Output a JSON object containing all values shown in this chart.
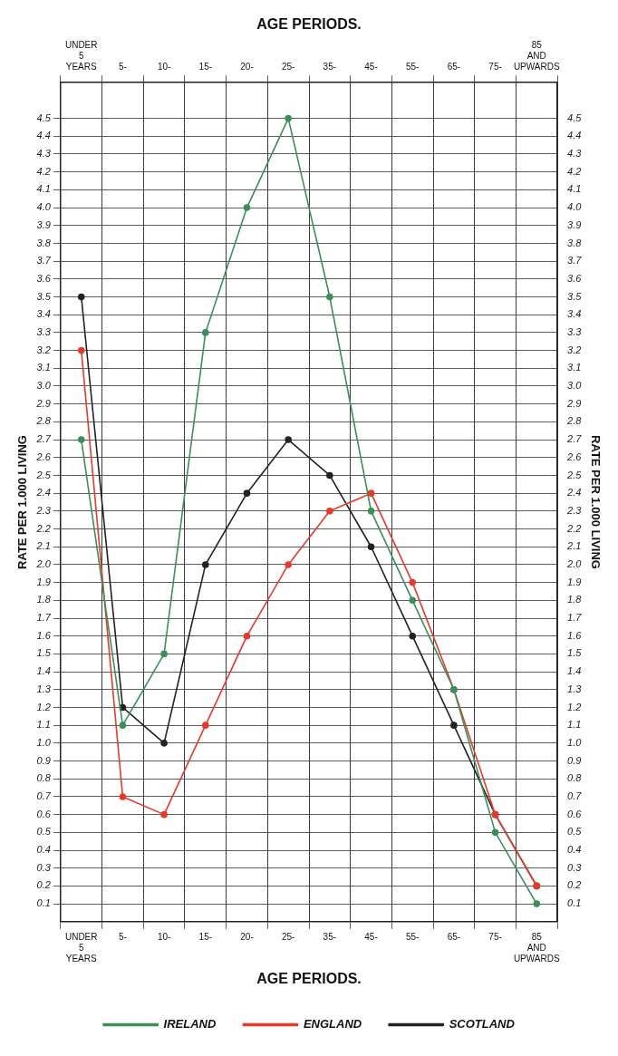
{
  "chart_data": {
    "type": "line",
    "xlabel": "AGE PERIODS.",
    "x2label": "AGE PERIODS.",
    "ylabel": "RATE PER 1.000 LIVING",
    "y2label": "RATE PER 1.000 LIVING",
    "categories": [
      "UNDER 5 YEARS",
      "5-",
      "10-",
      "15-",
      "20-",
      "25-",
      "35-",
      "45-",
      "55-",
      "65-",
      "75-",
      "85 AND UPWARDS"
    ],
    "series": [
      {
        "name": "IRELAND",
        "color": "#3a8f5a",
        "values": [
          2.7,
          1.1,
          1.5,
          3.3,
          4.0,
          4.5,
          3.5,
          2.3,
          1.8,
          1.3,
          0.5,
          0.1
        ]
      },
      {
        "name": "ENGLAND",
        "color": "#e8392a",
        "values": [
          3.2,
          0.7,
          0.6,
          1.1,
          1.6,
          2.0,
          2.3,
          2.4,
          1.9,
          1.3,
          0.6,
          0.2
        ]
      },
      {
        "name": "SCOTLAND",
        "color": "#222222",
        "values": [
          3.5,
          1.2,
          1.0,
          2.0,
          2.4,
          2.7,
          2.5,
          2.1,
          1.6,
          1.1,
          0.6,
          0.2
        ]
      }
    ],
    "ylim": [
      0,
      4.7
    ],
    "yticks": [
      0.1,
      0.2,
      0.3,
      0.4,
      0.5,
      0.6,
      0.7,
      0.8,
      0.9,
      {
        "value": 1,
        "label": "1.0"
      },
      1.1,
      1.2,
      1.3,
      1.4,
      1.5,
      1.6,
      1.7,
      1.8,
      1.9,
      {
        "value": 2,
        "label": "2.0"
      },
      2.1,
      2.2,
      2.3,
      2.4,
      2.5,
      2.6,
      2.7,
      2.8,
      2.9,
      {
        "value": 3,
        "label": "3.0"
      },
      3.1,
      3.2,
      3.3,
      3.4,
      3.5,
      3.6,
      3.7,
      3.8,
      3.9,
      {
        "value": 4,
        "label": "4.0"
      },
      4.1,
      4.2,
      4.3,
      4.4,
      4.5
    ],
    "y2lim": [
      0,
      4.7
    ],
    "y2ticks": [
      0.1,
      0.2,
      0.3,
      0.4,
      0.5,
      0.6,
      0.7,
      0.8,
      0.9,
      {
        "value": 1,
        "label": "1.0"
      },
      1.1,
      1.2,
      1.3,
      1.4,
      1.5,
      1.6,
      1.7,
      1.8,
      1.9,
      {
        "value": 2,
        "label": "2.0"
      },
      2.1,
      2.2,
      2.3,
      2.4,
      2.5,
      2.6,
      2.7,
      2.8,
      2.9,
      {
        "value": 3,
        "label": "3.0"
      },
      3.1,
      3.2,
      3.3,
      3.4,
      3.5,
      3.6,
      3.7,
      3.8,
      3.9,
      {
        "value": 4,
        "label": "4.0"
      },
      4.1,
      4.2,
      4.3,
      4.4,
      4.5
    ],
    "grid": true,
    "legend": "bottom",
    "marker": "circle",
    "line_style": "solid"
  }
}
